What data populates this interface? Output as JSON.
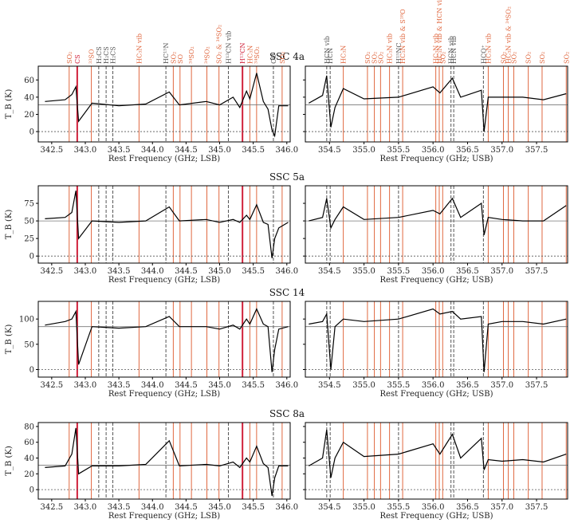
{
  "figure": {
    "colors": {
      "so2": "#f0a080",
      "hc3n": "#e06840",
      "cs": "#d0203a",
      "vib": "#555555",
      "trace": "#000000"
    }
  },
  "line_labels": {
    "lsb": [
      {
        "f": 342.76,
        "label": "SO₂",
        "kind": "hc3n"
      },
      {
        "f": 342.88,
        "label": "CS",
        "kind": "cs"
      },
      {
        "f": 343.09,
        "label": "³³SO",
        "kind": "hc3n"
      },
      {
        "f": 343.2,
        "label": "H₂CS",
        "kind": "vib"
      },
      {
        "f": 343.31,
        "label": "H₂CS",
        "kind": "vib"
      },
      {
        "f": 343.41,
        "label": "H₂CS",
        "kind": "vib"
      },
      {
        "f": 343.8,
        "label": "HC₃N vib",
        "kind": "hc3n"
      },
      {
        "f": 344.2,
        "label": "HC¹⁵N",
        "kind": "vib"
      },
      {
        "f": 344.31,
        "label": "SO₂",
        "kind": "hc3n"
      },
      {
        "f": 344.41,
        "label": "SO",
        "kind": "hc3n"
      },
      {
        "f": 344.58,
        "label": "³⁴SO₂",
        "kind": "hc3n"
      },
      {
        "f": 344.81,
        "label": "³⁴SO₂",
        "kind": "hc3n"
      },
      {
        "f": 344.99,
        "label": "SO₂ & ³⁴SO₂",
        "kind": "hc3n"
      },
      {
        "f": 345.13,
        "label": "H¹³CN vib",
        "kind": "vib"
      },
      {
        "f": 345.34,
        "label": "H¹³CN",
        "kind": "cs"
      },
      {
        "f": 345.45,
        "label": "HC₃N",
        "kind": "hc3n"
      },
      {
        "f": 345.55,
        "label": "³⁴SO₂",
        "kind": "hc3n"
      },
      {
        "f": 345.8,
        "label": "CO",
        "kind": "vib"
      },
      {
        "f": 345.93,
        "label": "SO₂",
        "kind": "hc3n"
      }
    ],
    "usb": [
      {
        "f": 354.46,
        "label": "HCN vib",
        "kind": "vib"
      },
      {
        "f": 354.51,
        "label": "HCN",
        "kind": "vib"
      },
      {
        "f": 354.7,
        "label": "HC₃N",
        "kind": "hc3n"
      },
      {
        "f": 355.05,
        "label": "SO₂",
        "kind": "hc3n"
      },
      {
        "f": 355.15,
        "label": "SO₂",
        "kind": "hc3n"
      },
      {
        "f": 355.24,
        "label": "SO₂",
        "kind": "hc3n"
      },
      {
        "f": 355.37,
        "label": "HC₃N vib",
        "kind": "hc3n"
      },
      {
        "f": 355.5,
        "label": "H¹⁵NC",
        "kind": "vib"
      },
      {
        "f": 355.56,
        "label": "HC₃N vib & S¹⁸O",
        "kind": "hc3n"
      },
      {
        "f": 356.04,
        "label": "HC₃N vib",
        "kind": "hc3n"
      },
      {
        "f": 356.09,
        "label": "HC₃N vib & HCN vib",
        "kind": "hc3n"
      },
      {
        "f": 356.14,
        "label": "SO₂",
        "kind": "hc3n"
      },
      {
        "f": 356.26,
        "label": "HCN vib",
        "kind": "vib"
      },
      {
        "f": 356.3,
        "label": "HCN vib",
        "kind": "vib"
      },
      {
        "f": 356.73,
        "label": "HCO⁺",
        "kind": "vib"
      },
      {
        "f": 356.8,
        "label": "HC₃N vib",
        "kind": "hc3n"
      },
      {
        "f": 357.02,
        "label": "SO₂",
        "kind": "hc3n"
      },
      {
        "f": 357.09,
        "label": "HC₃N vib & ³⁴SO₂",
        "kind": "hc3n"
      },
      {
        "f": 357.17,
        "label": "SO₂",
        "kind": "hc3n"
      },
      {
        "f": 357.38,
        "label": "SO₂",
        "kind": "hc3n"
      },
      {
        "f": 357.58,
        "label": "SO₂",
        "kind": "hc3n"
      },
      {
        "f": 357.93,
        "label": "SO₂",
        "kind": "hc3n"
      }
    ]
  },
  "chart_data": [
    {
      "type": "line",
      "title": "SSC 4a",
      "ylabel": "T_B (K)",
      "ylim": [
        -12,
        76
      ],
      "yticks": [
        0,
        20,
        40,
        60
      ],
      "baseline": 31,
      "lsb": {
        "xlabel": "Rest Frequency (GHz; LSB)",
        "xlim": [
          342.3,
          346.05
        ],
        "xticks": [
          342.5,
          343.0,
          343.5,
          344.0,
          344.5,
          345.0,
          345.5,
          346.0
        ],
        "x": [
          342.4,
          342.7,
          342.8,
          342.86,
          342.9,
          343.1,
          343.5,
          343.9,
          344.25,
          344.4,
          344.8,
          345.0,
          345.2,
          345.3,
          345.4,
          345.45,
          345.55,
          345.65,
          345.72,
          345.78,
          345.82,
          345.88,
          346.02
        ],
        "y": [
          35,
          37,
          43,
          52,
          12,
          33,
          30,
          32,
          46,
          31,
          35,
          31,
          40,
          28,
          47,
          38,
          68,
          35,
          26,
          2,
          -5,
          30,
          30
        ]
      },
      "usb": {
        "xlabel": "Rest Frequency (GHz; USB)",
        "xlim": [
          354.15,
          357.95
        ],
        "xticks": [
          354.5,
          355.0,
          355.5,
          356.0,
          356.5,
          357.0,
          357.5,
          358.0
        ],
        "x": [
          354.2,
          354.4,
          354.46,
          354.52,
          354.58,
          354.7,
          355.0,
          355.5,
          356.0,
          356.1,
          356.28,
          356.4,
          356.7,
          356.74,
          356.8,
          357.0,
          357.3,
          357.6,
          357.93
        ],
        "y": [
          33,
          42,
          65,
          5,
          28,
          50,
          38,
          40,
          52,
          45,
          62,
          40,
          48,
          0,
          40,
          40,
          40,
          37,
          44
        ]
      }
    },
    {
      "type": "line",
      "title": "SSC 5a",
      "ylabel": "T_B (K)",
      "ylim": [
        -10,
        100
      ],
      "yticks": [
        0,
        25,
        50,
        75
      ],
      "baseline": 50,
      "lsb": {
        "xlabel": "Rest Frequency (GHz; LSB)",
        "xlim": [
          342.3,
          346.05
        ],
        "xticks": [
          342.5,
          343.0,
          343.5,
          344.0,
          344.5,
          345.0,
          345.5,
          346.0
        ],
        "x": [
          342.4,
          342.7,
          342.8,
          342.86,
          342.9,
          343.1,
          343.5,
          343.9,
          344.25,
          344.4,
          344.8,
          345.0,
          345.2,
          345.3,
          345.4,
          345.45,
          345.55,
          345.65,
          345.72,
          345.78,
          345.82,
          345.88,
          346.02
        ],
        "y": [
          53,
          55,
          62,
          93,
          25,
          50,
          48,
          50,
          70,
          50,
          52,
          48,
          52,
          48,
          58,
          52,
          73,
          48,
          45,
          -3,
          25,
          40,
          48
        ]
      },
      "usb": {
        "xlabel": "Rest Frequency (GHz; USB)",
        "xlim": [
          354.15,
          357.95
        ],
        "xticks": [
          354.5,
          355.0,
          355.5,
          356.0,
          356.5,
          357.0,
          357.5,
          358.0
        ],
        "x": [
          354.2,
          354.4,
          354.46,
          354.52,
          354.58,
          354.7,
          355.0,
          355.5,
          356.0,
          356.1,
          356.28,
          356.4,
          356.7,
          356.74,
          356.8,
          357.0,
          357.3,
          357.6,
          357.93
        ],
        "y": [
          50,
          55,
          82,
          40,
          52,
          70,
          52,
          55,
          65,
          60,
          82,
          55,
          75,
          30,
          55,
          52,
          50,
          50,
          72
        ]
      }
    },
    {
      "type": "line",
      "title": "SSC 14",
      "ylabel": "T_B (K)",
      "ylim": [
        -15,
        135
      ],
      "yticks": [
        0,
        50,
        100
      ],
      "baseline": 85,
      "lsb": {
        "xlabel": "Rest Frequency (GHz; LSB)",
        "xlim": [
          342.3,
          346.05
        ],
        "xticks": [
          342.5,
          343.0,
          343.5,
          344.0,
          344.5,
          345.0,
          345.5,
          346.0
        ],
        "x": [
          342.4,
          342.7,
          342.8,
          342.86,
          342.9,
          343.1,
          343.5,
          343.9,
          344.25,
          344.4,
          344.8,
          345.0,
          345.2,
          345.3,
          345.4,
          345.45,
          345.55,
          345.65,
          345.72,
          345.78,
          345.82,
          345.88,
          346.02
        ],
        "y": [
          88,
          95,
          100,
          115,
          10,
          85,
          82,
          85,
          105,
          85,
          85,
          80,
          88,
          80,
          100,
          90,
          120,
          90,
          85,
          -5,
          40,
          80,
          85
        ]
      },
      "usb": {
        "xlabel": "Rest Frequency (GHz; USB)",
        "xlim": [
          354.15,
          357.95
        ],
        "xticks": [
          354.5,
          355.0,
          355.5,
          356.0,
          356.5,
          357.0,
          357.5,
          358.0
        ],
        "x": [
          354.2,
          354.4,
          354.46,
          354.52,
          354.58,
          354.7,
          355.0,
          355.5,
          356.0,
          356.1,
          356.28,
          356.4,
          356.7,
          356.74,
          356.8,
          357.0,
          357.3,
          357.6,
          357.93
        ],
        "y": [
          90,
          95,
          110,
          0,
          85,
          100,
          95,
          100,
          120,
          110,
          115,
          100,
          105,
          -5,
          90,
          95,
          95,
          90,
          100
        ]
      }
    },
    {
      "type": "line",
      "title": "SSC 8a",
      "ylabel": "T_B (K)",
      "ylim": [
        -12,
        85
      ],
      "yticks": [
        0,
        20,
        40,
        60,
        80
      ],
      "baseline": 31,
      "lsb": {
        "xlabel": "Rest Frequency (GHz; LSB)",
        "xlim": [
          342.3,
          346.05
        ],
        "xticks": [
          342.5,
          343.0,
          343.5,
          344.0,
          344.5,
          345.0,
          345.5,
          346.0
        ],
        "x": [
          342.4,
          342.7,
          342.8,
          342.86,
          342.9,
          343.1,
          343.5,
          343.9,
          344.25,
          344.4,
          344.8,
          345.0,
          345.2,
          345.3,
          345.4,
          345.45,
          345.55,
          345.65,
          345.72,
          345.78,
          345.82,
          345.88,
          346.02
        ],
        "y": [
          28,
          30,
          45,
          78,
          20,
          30,
          30,
          32,
          62,
          30,
          32,
          30,
          35,
          28,
          40,
          35,
          55,
          33,
          28,
          -8,
          15,
          30,
          30
        ]
      },
      "usb": {
        "xlabel": "Rest Frequency (GHz; USB)",
        "xlim": [
          354.15,
          357.95
        ],
        "xticks": [
          354.5,
          355.0,
          355.5,
          356.0,
          356.5,
          357.0,
          357.5,
          358.0
        ],
        "x": [
          354.2,
          354.4,
          354.46,
          354.52,
          354.58,
          354.7,
          355.0,
          355.5,
          356.0,
          356.1,
          356.28,
          356.4,
          356.7,
          356.74,
          356.8,
          357.0,
          357.3,
          357.6,
          357.93
        ],
        "y": [
          30,
          40,
          76,
          15,
          40,
          60,
          42,
          45,
          58,
          45,
          70,
          40,
          65,
          25,
          38,
          36,
          38,
          35,
          45
        ]
      }
    }
  ]
}
